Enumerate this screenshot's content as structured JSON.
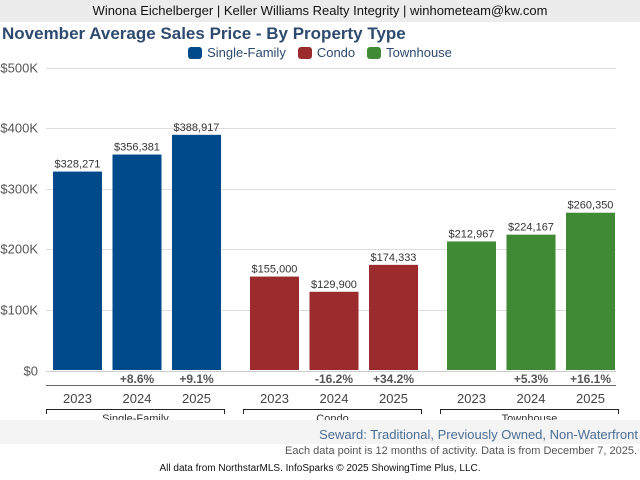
{
  "header": {
    "agent_line": "Winona Eichelberger | Keller Williams Realty Integrity | winhometeam@kw.com"
  },
  "chart_data": {
    "type": "bar",
    "title": "November Average Sales Price - By Property Type",
    "ylabel": "",
    "xlabel": "",
    "ylim": [
      0,
      500000
    ],
    "y_ticks": [
      {
        "value": 0,
        "label": "$0"
      },
      {
        "value": 100000,
        "label": "$100K"
      },
      {
        "value": 200000,
        "label": "$200K"
      },
      {
        "value": 300000,
        "label": "$300K"
      },
      {
        "value": 400000,
        "label": "$400K"
      },
      {
        "value": 500000,
        "label": "$500K"
      }
    ],
    "grid": true,
    "legend_position": "top-center",
    "legend": [
      {
        "name": "Single-Family",
        "color": "#004a8b"
      },
      {
        "name": "Condo",
        "color": "#9c2b2e"
      },
      {
        "name": "Townhouse",
        "color": "#418a35"
      }
    ],
    "groups": [
      {
        "name": "Single-Family",
        "color": "#004a8b",
        "bars": [
          {
            "year": "2023",
            "value": 328271,
            "label": "$328,271",
            "change": ""
          },
          {
            "year": "2024",
            "value": 356381,
            "label": "$356,381",
            "change": "+8.6%"
          },
          {
            "year": "2025",
            "value": 388917,
            "label": "$388,917",
            "change": "+9.1%"
          }
        ]
      },
      {
        "name": "Condo",
        "color": "#9c2b2e",
        "bars": [
          {
            "year": "2023",
            "value": 155000,
            "label": "$155,000",
            "change": ""
          },
          {
            "year": "2024",
            "value": 129900,
            "label": "$129,900",
            "change": "-16.2%"
          },
          {
            "year": "2025",
            "value": 174333,
            "label": "$174,333",
            "change": "+34.2%"
          }
        ]
      },
      {
        "name": "Townhouse",
        "color": "#418a35",
        "bars": [
          {
            "year": "2023",
            "value": 212967,
            "label": "$212,967",
            "change": ""
          },
          {
            "year": "2024",
            "value": 224167,
            "label": "$224,167",
            "change": "+5.3%"
          },
          {
            "year": "2025",
            "value": 260350,
            "label": "$260,350",
            "change": "+16.1%"
          }
        ]
      }
    ]
  },
  "subtitle": "Seward: Traditional, Previously Owned, Non-Waterfront",
  "note": "Each data point is 12 months of activity. Data is from December 7, 2025.",
  "footer": "All data from NorthstarMLS. InfoSparks © 2025 ShowingTime Plus, LLC."
}
